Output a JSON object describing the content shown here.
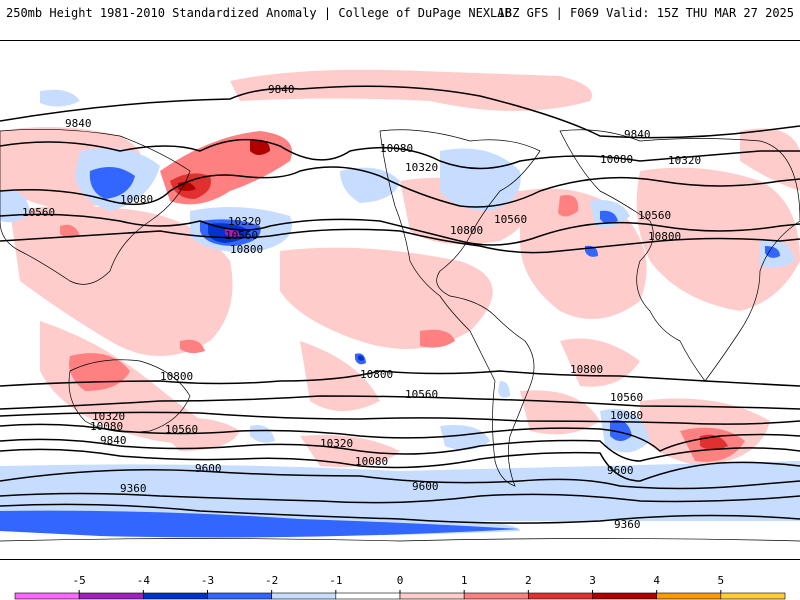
{
  "header": {
    "title_left": "250mb Height 1981-2010 Standardized Anomaly | College of DuPage NEXLAB",
    "title_right": "18Z GFS | F069 Valid: 15Z THU MAR 27 2025"
  },
  "contour_labels": [
    "9840",
    "9840",
    "9840",
    "9840",
    "10080",
    "10080",
    "10080",
    "10080",
    "10080",
    "10080",
    "10320",
    "10320",
    "10320",
    "10320",
    "10320",
    "10560",
    "10560",
    "10560",
    "10560",
    "10560",
    "10560",
    "10560",
    "10800",
    "10800",
    "10800",
    "10800",
    "10800",
    "10800",
    "9600",
    "9600",
    "9600",
    "9360",
    "9360"
  ],
  "colorbar": {
    "ticks": [
      "-5",
      "-4",
      "-3",
      "-2",
      "-1",
      "0",
      "1",
      "2",
      "3",
      "4",
      "5"
    ],
    "colors": [
      "#ff66ff",
      "#a020c0",
      "#0033cc",
      "#3366ff",
      "#c6ddff",
      "#ffffff",
      "#ffcccc",
      "#ff8080",
      "#e03030",
      "#b00000",
      "#ff9900",
      "#ffcc33"
    ]
  }
}
